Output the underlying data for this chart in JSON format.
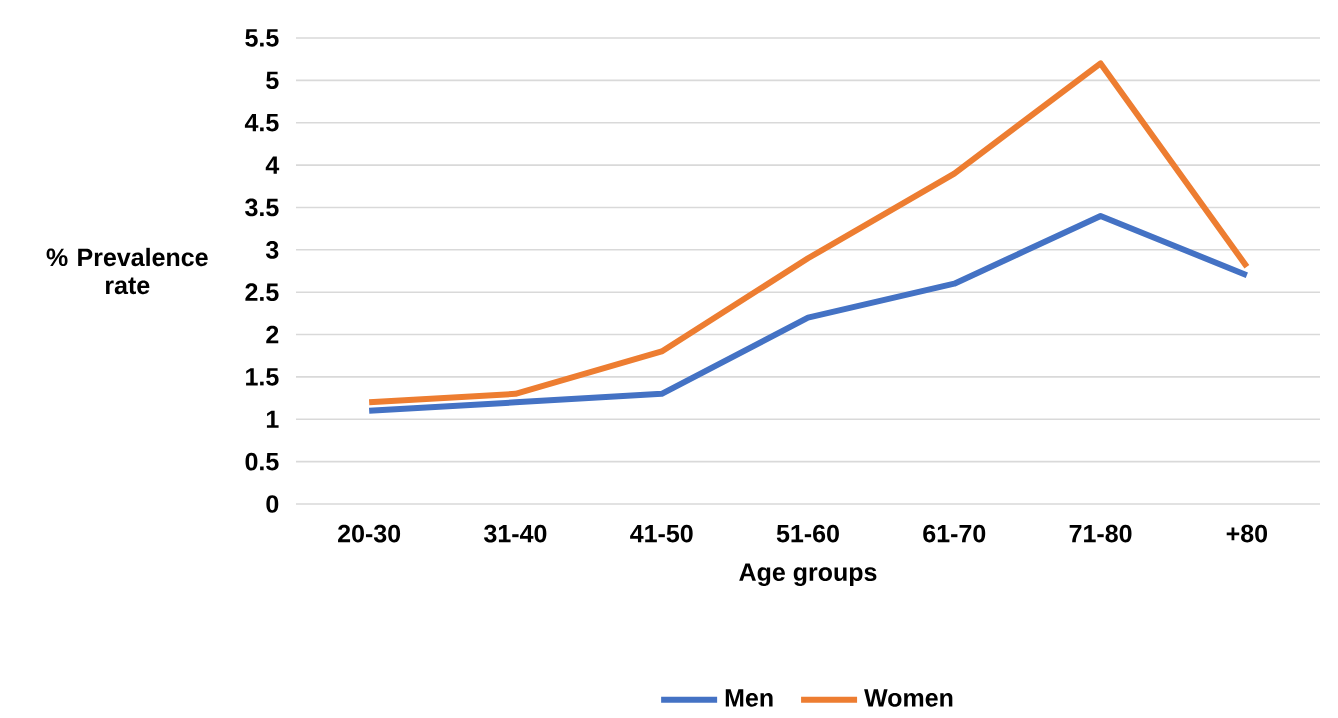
{
  "chart_data": {
    "type": "line",
    "xlabel": "Age groups",
    "ylabel": "% Prevalence rate",
    "categories": [
      "20-30",
      "31-40",
      "41-50",
      "51-60",
      "61-70",
      "71-80",
      "+80"
    ],
    "series": [
      {
        "name": "Men",
        "color": "#4472c4",
        "values": [
          1.1,
          1.2,
          1.3,
          2.2,
          2.6,
          3.4,
          2.7
        ]
      },
      {
        "name": "Women",
        "color": "#ed7d31",
        "values": [
          1.2,
          1.3,
          1.8,
          2.9,
          3.9,
          5.2,
          2.8
        ]
      }
    ],
    "ylim": [
      0,
      5.5
    ],
    "yticks": [
      0,
      0.5,
      1,
      1.5,
      2,
      2.5,
      3,
      3.5,
      4,
      4.5,
      5,
      5.5
    ],
    "grid": "y",
    "legend": "bottom",
    "marker": "none",
    "line_style": "solid"
  }
}
